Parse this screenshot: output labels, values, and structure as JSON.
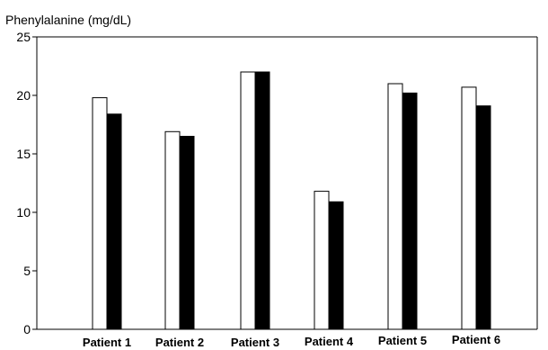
{
  "chart_data": {
    "type": "bar",
    "title": "",
    "ylabel": "Phenylalanine (mg/dL)",
    "xlabel": "",
    "ylim": [
      0,
      25
    ],
    "yticks": [
      "0",
      "5",
      "10",
      "15",
      "20",
      "25"
    ],
    "grid": false,
    "categories": [
      "Patient 1",
      "Patient 2",
      "Patient 3",
      "Patient 4",
      "Patient 5",
      "Patient 6"
    ],
    "series": [
      {
        "fill": "#ffffff",
        "values": [
          19.8,
          16.9,
          22.0,
          11.8,
          21.0,
          20.7
        ]
      },
      {
        "fill": "#000000",
        "values": [
          18.4,
          16.5,
          22.0,
          10.9,
          20.2,
          19.1
        ]
      }
    ]
  }
}
